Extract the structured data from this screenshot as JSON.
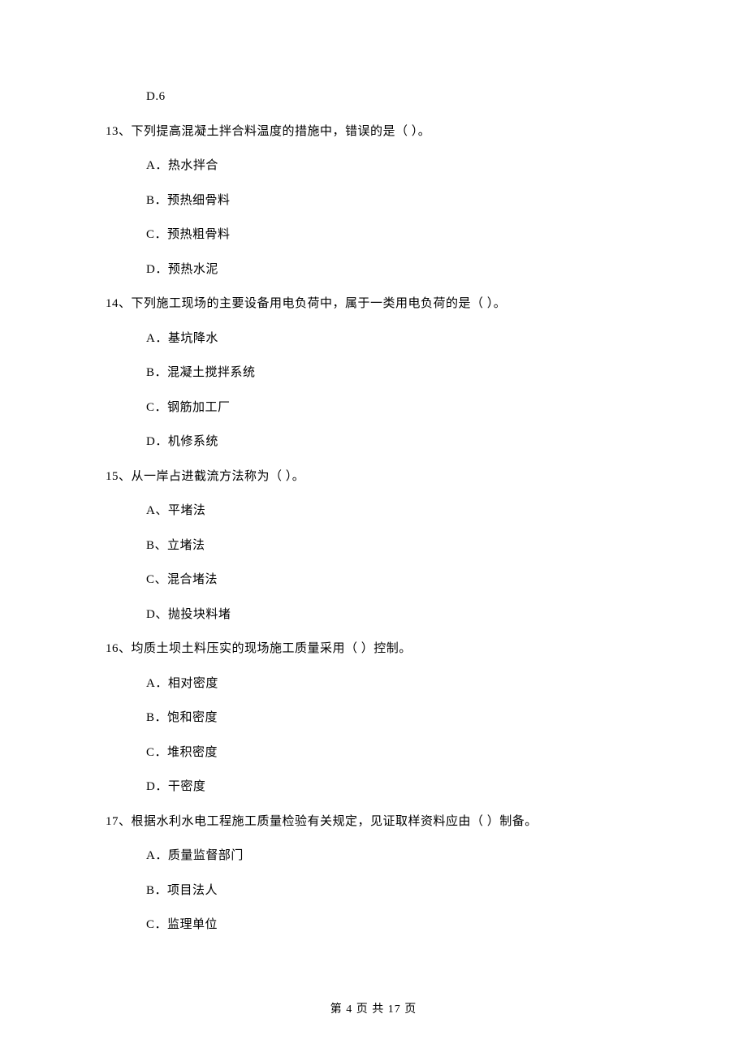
{
  "page": {
    "background_color": "#ffffff",
    "text_color": "#000000",
    "font_family": "SimSun",
    "body_fontsize": 15,
    "footer_fontsize": 14
  },
  "orphan_option": {
    "label": "D.6"
  },
  "questions": [
    {
      "number": "13、",
      "text": "下列提高混凝土拌合料温度的措施中，错误的是（    ）。",
      "options": [
        "A．热水拌合",
        "B．预热细骨料",
        "C．预热粗骨料",
        "D．预热水泥"
      ]
    },
    {
      "number": "14、",
      "text": "下列施工现场的主要设备用电负荷中，属于一类用电负荷的是（    ）。",
      "options": [
        "A．基坑降水",
        "B．混凝土搅拌系统",
        "C．钢筋加工厂",
        "D．机修系统"
      ]
    },
    {
      "number": "15、",
      "text": "从一岸占进截流方法称为（    ）。",
      "options": [
        "A、平堵法",
        "B、立堵法",
        "C、混合堵法",
        "D、抛投块料堵"
      ]
    },
    {
      "number": "16、",
      "text": "均质土坝土料压实的现场施工质量采用（    ）控制。",
      "options": [
        "A．相对密度",
        "B．饱和密度",
        "C．堆积密度",
        "D．干密度"
      ]
    },
    {
      "number": "17、",
      "text": "根据水利水电工程施工质量检验有关规定，见证取样资料应由（    ）制备。",
      "options": [
        "A．质量监督部门",
        "B．项目法人",
        "C．监理单位"
      ]
    }
  ],
  "footer": {
    "text": "第 4 页 共 17 页"
  }
}
